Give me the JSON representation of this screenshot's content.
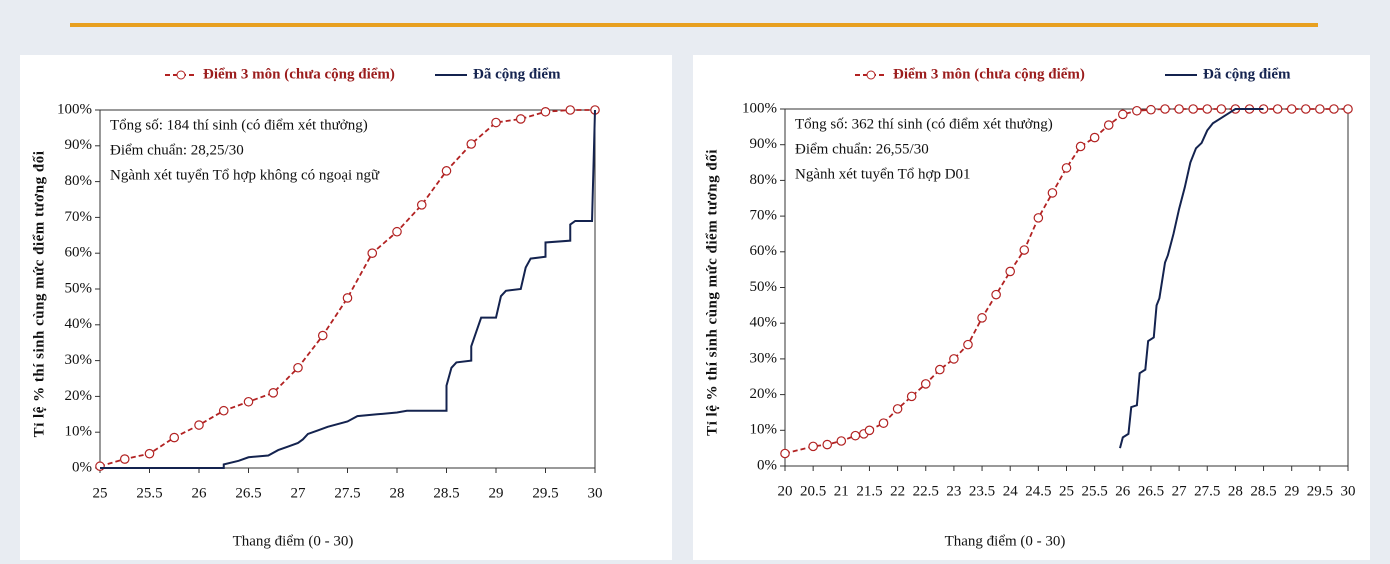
{
  "chart_data": [
    {
      "type": "line",
      "y_label": "Tỉ lệ % thí sinh cùng mức điểm tương đối",
      "x_label": "Thang điểm (0 - 30)",
      "annotations": [
        "Tổng số: 184 thí sinh  (có điểm xét thưởng)",
        "Điểm chuẩn: 28,25/30",
        "Ngành xét tuyển Tổ hợp không có ngoại ngữ"
      ],
      "xlim": [
        25,
        30
      ],
      "xticks": [
        25,
        25.5,
        26,
        26.5,
        27,
        27.5,
        28,
        28.5,
        29,
        29.5,
        30
      ],
      "ylim": [
        0,
        100
      ],
      "yticks": [
        {
          "value": 0,
          "label": "0%"
        },
        {
          "value": 10,
          "label": "10%"
        },
        {
          "value": 20,
          "label": "20%"
        },
        {
          "value": 30,
          "label": "30%"
        },
        {
          "value": 40,
          "label": "40%"
        },
        {
          "value": 50,
          "label": "50%"
        },
        {
          "value": 60,
          "label": "60%"
        },
        {
          "value": 70,
          "label": "70%"
        },
        {
          "value": 80,
          "label": "80%"
        },
        {
          "value": 90,
          "label": "90%"
        },
        {
          "value": 100,
          "label": "100%"
        }
      ],
      "series": [
        {
          "name": "Điểm 3 môn (chưa cộng điểm)",
          "color": "#b22222",
          "style": "dashed-marker",
          "x": [
            25,
            25.25,
            25.5,
            25.75,
            26,
            26.25,
            26.5,
            26.75,
            27,
            27.25,
            27.5,
            27.75,
            28,
            28.25,
            28.5,
            28.75,
            29,
            29.25,
            29.5,
            29.75,
            30
          ],
          "values": [
            0.5,
            2.5,
            4,
            8.5,
            12,
            16,
            18.5,
            21,
            28,
            37,
            47.5,
            60,
            66,
            73.5,
            83,
            90.5,
            96.5,
            97.5,
            99.5,
            100,
            100
          ]
        },
        {
          "name": "Đã cộng điểm",
          "color": "#14234f",
          "style": "solid",
          "x": [
            25,
            26.25,
            26.25,
            26.4,
            26.5,
            26.7,
            26.8,
            26.9,
            27,
            27.05,
            27.1,
            27.2,
            27.3,
            27.5,
            27.6,
            27.8,
            28,
            28.1,
            28.5,
            28.5,
            28.55,
            28.6,
            28.75,
            28.75,
            28.8,
            28.85,
            29,
            29.05,
            29.1,
            29.25,
            29.3,
            29.35,
            29.5,
            29.5,
            29.75,
            29.75,
            29.8,
            29.97,
            30
          ],
          "values": [
            0,
            0,
            1,
            2,
            3,
            3.5,
            5,
            6,
            7,
            8,
            9.5,
            10.5,
            11.5,
            13,
            14.5,
            15,
            15.5,
            16,
            16,
            23,
            28,
            29.5,
            30,
            34,
            38,
            42,
            42,
            48,
            49.5,
            50,
            56,
            58.5,
            59,
            63,
            63.5,
            68,
            69,
            69,
            100
          ]
        }
      ]
    },
    {
      "type": "line",
      "y_label": "Tỉ lệ % thí sinh cùng mức điểm tương đối",
      "x_label": "Thang điểm (0 - 30)",
      "annotations": [
        "Tổng số: 362 thí sinh  (có điểm xét thưởng)",
        "Điểm chuẩn: 26,55/30",
        "Ngành xét tuyển Tổ hợp D01"
      ],
      "xlim": [
        20,
        30
      ],
      "xticks": [
        20,
        20.5,
        21,
        21.5,
        22,
        22.5,
        23,
        23.5,
        24,
        24.5,
        25,
        25.5,
        26,
        26.5,
        27,
        27.5,
        28,
        28.5,
        29,
        29.5,
        30
      ],
      "ylim": [
        0,
        100
      ],
      "yticks": [
        {
          "value": 0,
          "label": "0%"
        },
        {
          "value": 10,
          "label": "10%"
        },
        {
          "value": 20,
          "label": "20%"
        },
        {
          "value": 30,
          "label": "30%"
        },
        {
          "value": 40,
          "label": "40%"
        },
        {
          "value": 50,
          "label": "50%"
        },
        {
          "value": 60,
          "label": "60%"
        },
        {
          "value": 70,
          "label": "70%"
        },
        {
          "value": 80,
          "label": "80%"
        },
        {
          "value": 90,
          "label": "90%"
        },
        {
          "value": 100,
          "label": "100%"
        }
      ],
      "series": [
        {
          "name": "Điểm 3 môn (chưa cộng điểm)",
          "color": "#b22222",
          "style": "dashed-marker",
          "x": [
            20,
            20.5,
            20.75,
            21,
            21.25,
            21.4,
            21.5,
            21.75,
            22,
            22.25,
            22.5,
            22.75,
            23,
            23.25,
            23.5,
            23.75,
            24,
            24.25,
            24.5,
            24.75,
            25,
            25.25,
            25.5,
            25.75,
            26,
            26.25,
            26.5,
            26.75,
            27,
            27.25,
            27.5,
            27.75,
            28,
            28.25,
            28.5,
            28.75,
            29,
            29.25,
            29.5,
            29.75,
            30
          ],
          "values": [
            3.5,
            5.5,
            6,
            7,
            8.5,
            9,
            10,
            12,
            16,
            19.5,
            23,
            27,
            30,
            34,
            41.5,
            48,
            54.5,
            60.5,
            69.5,
            76.5,
            83.5,
            89.5,
            92,
            95.5,
            98.5,
            99.5,
            99.8,
            100,
            100,
            100,
            100,
            100,
            100,
            100,
            100,
            100,
            100,
            100,
            100,
            100,
            100
          ]
        },
        {
          "name": "Đã cộng điểm",
          "color": "#14234f",
          "style": "solid",
          "x": [
            25.95,
            26,
            26.1,
            26.15,
            26.25,
            26.3,
            26.4,
            26.45,
            26.55,
            26.6,
            26.65,
            26.75,
            26.8,
            26.9,
            27,
            27.1,
            27.2,
            27.3,
            27.4,
            27.5,
            27.6,
            27.75,
            27.9,
            28,
            28.5
          ],
          "values": [
            5,
            8,
            9,
            16.5,
            17,
            26,
            27,
            35,
            36,
            45,
            47,
            57,
            59,
            65,
            72,
            78,
            85,
            89,
            90.5,
            94,
            96,
            97.5,
            99,
            100,
            100
          ]
        }
      ]
    }
  ]
}
